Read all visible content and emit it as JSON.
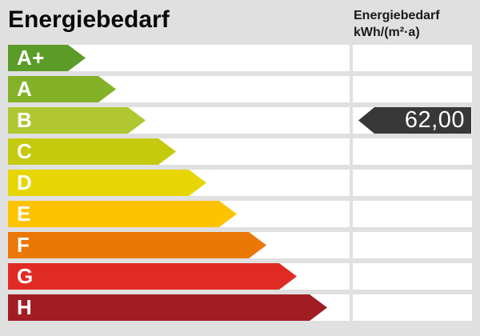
{
  "header": {
    "title": "Energiebedarf",
    "unit_line1": "Energiebedarf",
    "unit_line2": "kWh/(m²·a)"
  },
  "colors": {
    "background": "#e0e0e0",
    "row_track": "#ffffff",
    "indicator": "#383838",
    "label_text": "#ffffff"
  },
  "chart_data": {
    "type": "bar",
    "title": "Energiebedarf",
    "unit": "kWh/(m²·a)",
    "orientation": "horizontal",
    "categories": [
      "A+",
      "A",
      "B",
      "C",
      "D",
      "E",
      "F",
      "G",
      "H"
    ],
    "series": [
      {
        "name": "class-arrow-length-px",
        "values": [
          97,
          135,
          172,
          210,
          248,
          286,
          323,
          361,
          399
        ]
      }
    ],
    "bar_colors": [
      "#5b9c28",
      "#83b229",
      "#b1c732",
      "#c6ca0e",
      "#e7d506",
      "#fdc300",
      "#e97807",
      "#e02b25",
      "#a01e23"
    ],
    "legend_position": "none",
    "grid": false,
    "indicator": {
      "value_label": "62,00",
      "value": 62.0,
      "class": "B",
      "color": "#383838"
    }
  }
}
